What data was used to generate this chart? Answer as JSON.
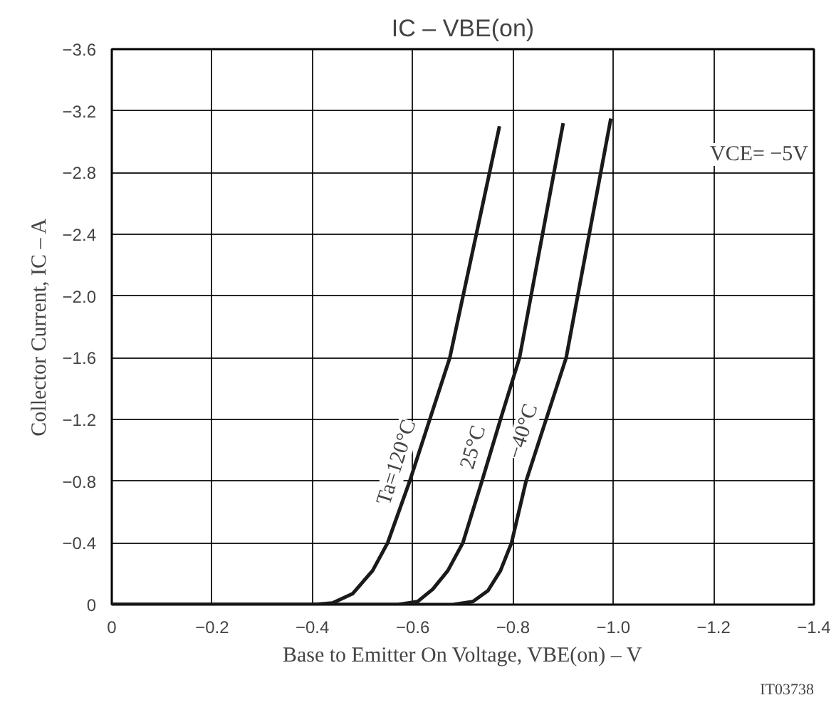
{
  "chart_data": {
    "type": "line",
    "title": "IC – VBE(on)",
    "xlabel": "Base to Emitter On Voltage, VBE(on) – V",
    "ylabel": "Collector Current, IC – A",
    "annotations": [
      "VCE= −5V",
      "IT03738"
    ],
    "xlim": [
      0,
      -1.4
    ],
    "ylim": [
      0,
      -3.6
    ],
    "xticks": [
      {
        "value": 0,
        "label": "0"
      },
      {
        "value": -0.2,
        "label": "−0.2"
      },
      {
        "value": -0.4,
        "label": "−0.4"
      },
      {
        "value": -0.6,
        "label": "−0.6"
      },
      {
        "value": -0.8,
        "label": "−0.8"
      },
      {
        "value": -1.0,
        "label": "−1.0"
      },
      {
        "value": -1.2,
        "label": "−1.2"
      },
      {
        "value": -1.4,
        "label": "−1.4"
      }
    ],
    "yticks": [
      {
        "value": 0,
        "label": "0"
      },
      {
        "value": -0.4,
        "label": "−0.4"
      },
      {
        "value": -0.8,
        "label": "−0.8"
      },
      {
        "value": -1.2,
        "label": "−1.2"
      },
      {
        "value": -1.6,
        "label": "−1.6"
      },
      {
        "value": -2.0,
        "label": "−2.0"
      },
      {
        "value": -2.4,
        "label": "−2.4"
      },
      {
        "value": -2.8,
        "label": "−2.8"
      },
      {
        "value": -3.2,
        "label": "−3.2"
      },
      {
        "value": -3.6,
        "label": "−3.6"
      }
    ],
    "grid": true,
    "legend": false,
    "line_style": "solid",
    "series": [
      {
        "name": "Ta=120°C",
        "color": "#1a1a1a",
        "x": [
          0,
          -0.4,
          -0.44,
          -0.48,
          -0.52,
          -0.55,
          -0.594,
          -0.634,
          -0.674,
          -0.773
        ],
        "values": [
          0,
          0,
          -0.01,
          -0.07,
          -0.22,
          -0.4,
          -0.8,
          -1.2,
          -1.6,
          -3.1
        ]
      },
      {
        "name": "25°C",
        "color": "#1a1a1a",
        "x": [
          0,
          -0.57,
          -0.61,
          -0.64,
          -0.67,
          -0.7,
          -0.738,
          -0.775,
          -0.813,
          -0.9
        ],
        "values": [
          0,
          0,
          -0.02,
          -0.1,
          -0.22,
          -0.4,
          -0.8,
          -1.2,
          -1.6,
          -3.12
        ]
      },
      {
        "name": "−40°C",
        "color": "#1a1a1a",
        "x": [
          0,
          -0.68,
          -0.72,
          -0.75,
          -0.775,
          -0.797,
          -0.826,
          -0.866,
          -0.906,
          -0.995
        ],
        "values": [
          0,
          0,
          -0.02,
          -0.09,
          -0.22,
          -0.4,
          -0.8,
          -1.2,
          -1.6,
          -3.15
        ]
      }
    ]
  }
}
